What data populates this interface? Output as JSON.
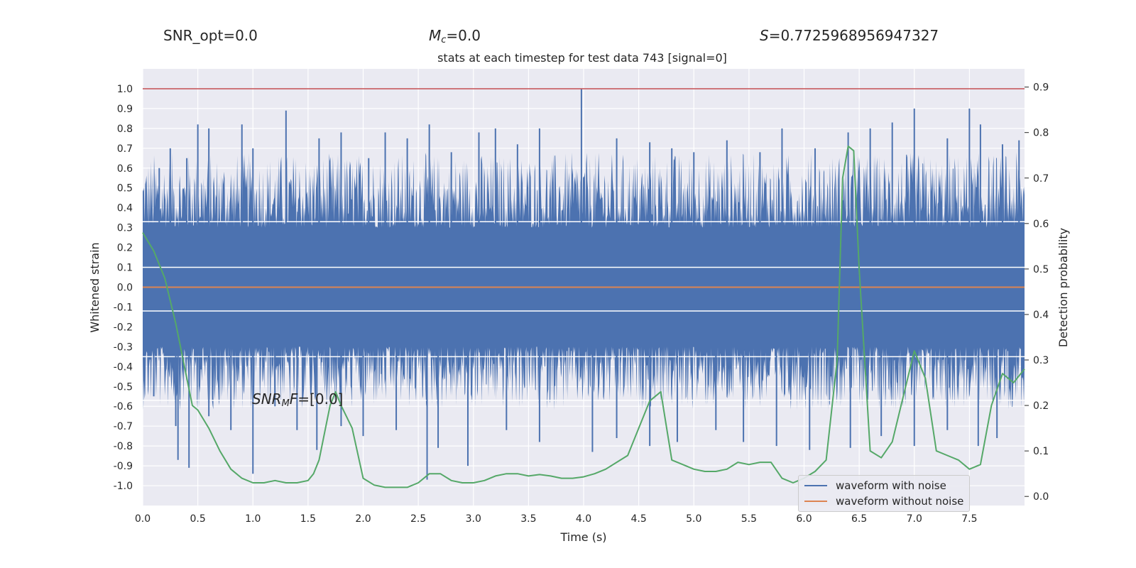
{
  "header": {
    "snr_opt": "SNR_opt=0.0",
    "mc_symbol": "M",
    "mc_sub": "c",
    "mc_value": "=0.0",
    "s_symbol": "S",
    "s_value": "=0.7725968956947327"
  },
  "annotation": {
    "snr_symbol": "SNR",
    "snr_sub": "M",
    "snr_f": "F",
    "snr_value": "=[0.0]"
  },
  "chart_data": {
    "type": "line",
    "title": "stats at each timestep for test data 743 [signal=0]",
    "xlabel": "Time (s)",
    "ylabel": "Whitened strain",
    "y2label": "Detection probability",
    "xlim": [
      0,
      8.0
    ],
    "ylim": [
      -1.1,
      1.1
    ],
    "y2lim": [
      -0.02,
      0.94
    ],
    "xticks": [
      "0.0",
      "0.5",
      "1.0",
      "1.5",
      "2.0",
      "2.5",
      "3.0",
      "3.5",
      "4.0",
      "4.5",
      "5.0",
      "5.5",
      "6.0",
      "6.5",
      "7.0",
      "7.5"
    ],
    "yticks": [
      "1.0",
      "0.9",
      "0.8",
      "0.7",
      "0.6",
      "0.5",
      "0.4",
      "0.3",
      "0.2",
      "0.1",
      "0.0",
      "-0.1",
      "-0.2",
      "-0.3",
      "-0.4",
      "-0.5",
      "-0.6",
      "-0.7",
      "-0.8",
      "-0.9",
      "-1.0"
    ],
    "y2ticks": [
      "0.9",
      "0.8",
      "0.7",
      "0.6",
      "0.5",
      "0.4",
      "0.3",
      "0.2",
      "0.1",
      "0.0"
    ],
    "hline_value": 1.0,
    "series": [
      {
        "name": "waveform with noise",
        "color": "#4c72b0",
        "band_core": 0.3,
        "upper_spikes": [
          [
            0.15,
            0.6
          ],
          [
            0.25,
            0.7
          ],
          [
            0.4,
            0.65
          ],
          [
            0.5,
            0.82
          ],
          [
            0.6,
            0.8
          ],
          [
            0.9,
            0.82
          ],
          [
            1.0,
            0.7
          ],
          [
            1.3,
            0.89
          ],
          [
            1.6,
            0.75
          ],
          [
            1.8,
            0.78
          ],
          [
            2.05,
            0.65
          ],
          [
            2.2,
            0.78
          ],
          [
            2.4,
            0.75
          ],
          [
            2.6,
            0.82
          ],
          [
            2.8,
            0.68
          ],
          [
            3.05,
            0.78
          ],
          [
            3.2,
            0.8
          ],
          [
            3.4,
            0.72
          ],
          [
            3.6,
            0.8
          ],
          [
            3.98,
            1.0
          ],
          [
            4.3,
            0.75
          ],
          [
            4.6,
            0.73
          ],
          [
            4.8,
            0.7
          ],
          [
            5.0,
            0.68
          ],
          [
            5.3,
            0.74
          ],
          [
            5.6,
            0.68
          ],
          [
            5.8,
            0.8
          ],
          [
            6.1,
            0.7
          ],
          [
            6.4,
            0.78
          ],
          [
            6.6,
            0.8
          ],
          [
            6.8,
            0.83
          ],
          [
            7.0,
            0.9
          ],
          [
            7.3,
            0.75
          ],
          [
            7.5,
            0.9
          ],
          [
            7.6,
            0.82
          ],
          [
            7.8,
            0.72
          ],
          [
            7.95,
            0.74
          ]
        ],
        "lower_spikes": [
          [
            0.1,
            -0.55
          ],
          [
            0.3,
            -0.7
          ],
          [
            0.32,
            -0.87
          ],
          [
            0.42,
            -0.91
          ],
          [
            0.6,
            -0.65
          ],
          [
            0.8,
            -0.72
          ],
          [
            1.0,
            -0.94
          ],
          [
            1.2,
            -0.6
          ],
          [
            1.4,
            -0.72
          ],
          [
            1.58,
            -0.82
          ],
          [
            1.8,
            -0.7
          ],
          [
            2.0,
            -0.75
          ],
          [
            2.3,
            -0.72
          ],
          [
            2.58,
            -0.97
          ],
          [
            2.68,
            -0.81
          ],
          [
            2.95,
            -0.9
          ],
          [
            3.3,
            -0.72
          ],
          [
            3.6,
            -0.78
          ],
          [
            4.08,
            -0.83
          ],
          [
            4.3,
            -0.76
          ],
          [
            4.6,
            -0.8
          ],
          [
            4.85,
            -0.78
          ],
          [
            5.2,
            -0.72
          ],
          [
            5.45,
            -0.78
          ],
          [
            5.75,
            -0.8
          ],
          [
            6.05,
            -0.82
          ],
          [
            6.42,
            -0.81
          ],
          [
            6.7,
            -0.75
          ],
          [
            7.0,
            -0.8
          ],
          [
            7.3,
            -0.72
          ],
          [
            7.58,
            -0.8
          ],
          [
            7.75,
            -0.76
          ]
        ]
      },
      {
        "name": "waveform without noise",
        "color": "#dd8452",
        "constant": 0.0
      },
      {
        "name": "Detection probability",
        "color": "#55a868",
        "axis": "right",
        "x": [
          0.0,
          0.1,
          0.2,
          0.3,
          0.4,
          0.45,
          0.5,
          0.6,
          0.7,
          0.8,
          0.9,
          1.0,
          1.1,
          1.2,
          1.3,
          1.4,
          1.5,
          1.55,
          1.6,
          1.7,
          1.75,
          1.8,
          1.9,
          2.0,
          2.1,
          2.2,
          2.3,
          2.4,
          2.5,
          2.6,
          2.7,
          2.8,
          2.9,
          3.0,
          3.1,
          3.2,
          3.3,
          3.4,
          3.5,
          3.6,
          3.7,
          3.8,
          3.9,
          4.0,
          4.1,
          4.2,
          4.3,
          4.4,
          4.5,
          4.6,
          4.7,
          4.8,
          4.9,
          5.0,
          5.1,
          5.2,
          5.3,
          5.4,
          5.5,
          5.6,
          5.7,
          5.8,
          5.9,
          6.0,
          6.1,
          6.2,
          6.3,
          6.35,
          6.4,
          6.45,
          6.5,
          6.6,
          6.7,
          6.8,
          6.9,
          7.0,
          7.1,
          7.2,
          7.3,
          7.4,
          7.5,
          7.6,
          7.7,
          7.8,
          7.9,
          8.0
        ],
        "y": [
          0.58,
          0.54,
          0.48,
          0.38,
          0.26,
          0.2,
          0.19,
          0.15,
          0.1,
          0.06,
          0.04,
          0.03,
          0.03,
          0.035,
          0.03,
          0.03,
          0.035,
          0.05,
          0.08,
          0.2,
          0.23,
          0.2,
          0.15,
          0.04,
          0.025,
          0.02,
          0.02,
          0.02,
          0.03,
          0.05,
          0.05,
          0.035,
          0.03,
          0.03,
          0.035,
          0.045,
          0.05,
          0.05,
          0.045,
          0.048,
          0.045,
          0.04,
          0.04,
          0.043,
          0.05,
          0.06,
          0.075,
          0.09,
          0.15,
          0.21,
          0.23,
          0.08,
          0.07,
          0.06,
          0.055,
          0.055,
          0.06,
          0.075,
          0.07,
          0.075,
          0.075,
          0.04,
          0.03,
          0.04,
          0.055,
          0.08,
          0.3,
          0.7,
          0.77,
          0.76,
          0.5,
          0.1,
          0.085,
          0.12,
          0.22,
          0.32,
          0.26,
          0.1,
          0.09,
          0.08,
          0.06,
          0.07,
          0.2,
          0.27,
          0.25,
          0.28
        ]
      }
    ]
  }
}
